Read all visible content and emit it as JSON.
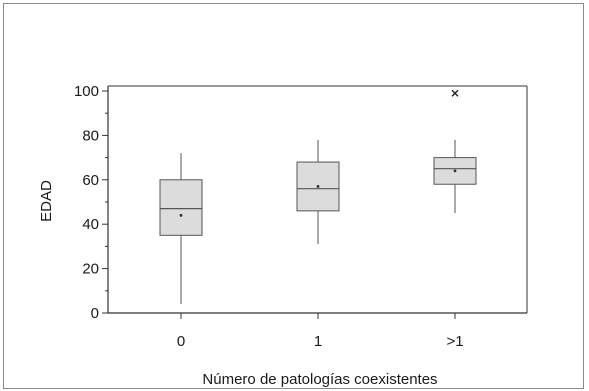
{
  "chart_data": {
    "type": "boxplot",
    "title": "",
    "xlabel": "Número de patologías coexistentes",
    "ylabel": "EDAD",
    "categories": [
      "0",
      "1",
      ">1"
    ],
    "ylim": [
      0,
      100
    ],
    "yticks": [
      0,
      20,
      40,
      60,
      80,
      100
    ],
    "yticks_labels": [
      "0",
      "20",
      "40",
      "60",
      "80",
      "100"
    ],
    "grid": false,
    "legend": "none",
    "series": [
      {
        "stats": [
          {
            "min": 4,
            "q1": 35,
            "median": 47,
            "q3": 60,
            "max": 72,
            "mean": 44,
            "outliers": []
          },
          {
            "min": 31,
            "q1": 46,
            "median": 56,
            "q3": 68,
            "max": 78,
            "mean": 57,
            "outliers": []
          },
          {
            "min": 45,
            "q1": 58,
            "median": 65,
            "q3": 70,
            "max": 78,
            "mean": 64,
            "outliers": [
              99
            ]
          }
        ]
      }
    ],
    "colors": {
      "box_fill": "#dcdcdc",
      "box_stroke": "#555555",
      "axis": "#333333",
      "text": "#1a1a1a"
    }
  }
}
